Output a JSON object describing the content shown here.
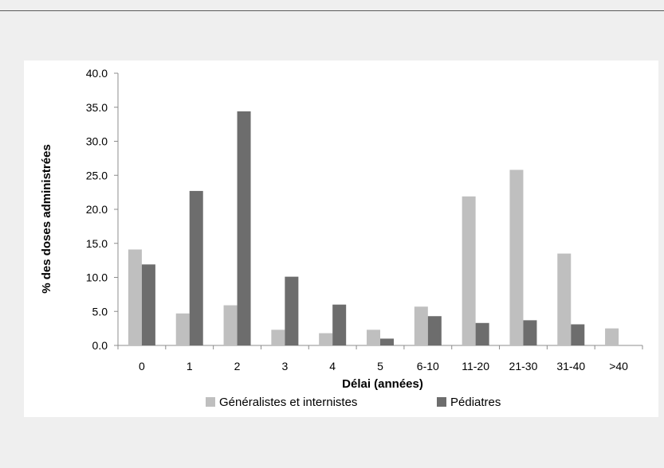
{
  "chart_data": {
    "type": "bar",
    "xlabel": "Délai (années)",
    "ylabel": "% des doses administrées",
    "ylim": [
      0,
      40
    ],
    "ytick_step": 5,
    "categories": [
      "0",
      "1",
      "2",
      "3",
      "4",
      "5",
      "6-10",
      "11-20",
      "21-30",
      "31-40",
      ">40"
    ],
    "series": [
      {
        "name": "Généralistes et internistes",
        "color": "#bfbfbf",
        "values": [
          14.1,
          4.7,
          5.9,
          2.3,
          1.8,
          2.3,
          5.7,
          21.9,
          25.8,
          13.5,
          2.5
        ]
      },
      {
        "name": "Pédiatres",
        "color": "#6d6d6d",
        "values": [
          11.9,
          22.7,
          34.4,
          10.1,
          6.0,
          1.0,
          4.3,
          3.3,
          3.7,
          3.1,
          null
        ]
      }
    ],
    "grid": false,
    "legend_position": "bottom"
  }
}
